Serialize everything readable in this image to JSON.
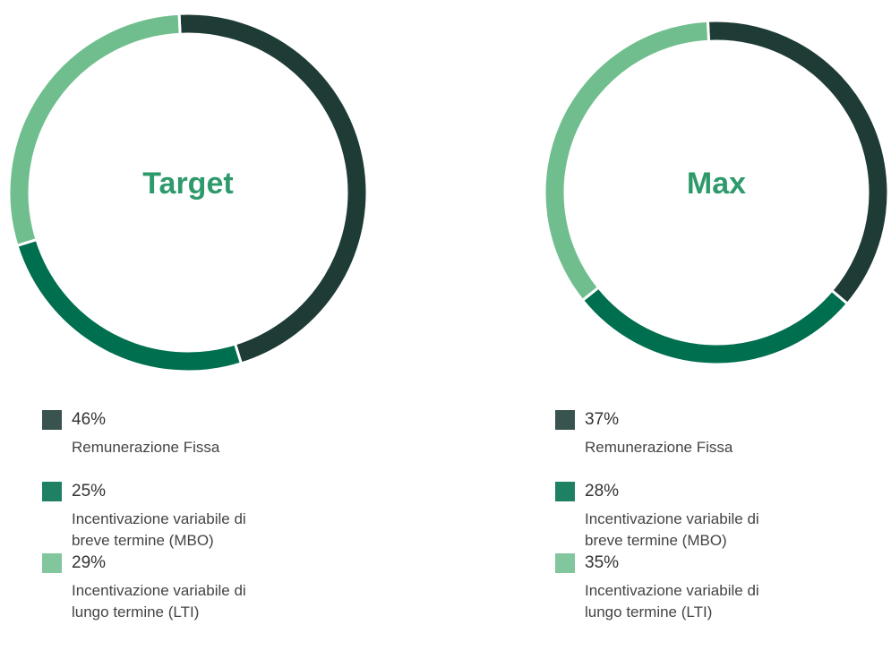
{
  "chart_data": [
    {
      "type": "pie",
      "title": "Target",
      "categories": [
        "Remunerazione Fissa",
        "Incentivazione variabile di breve termine (MBO)",
        "Incentivazione variabile di lungo termine (LTI)"
      ],
      "values": [
        46,
        25,
        29
      ],
      "value_labels": [
        "46%",
        "25%",
        "29%"
      ],
      "colors": [
        "#1e3b36",
        "#006f4f",
        "#70be8e"
      ]
    },
    {
      "type": "pie",
      "title": "Max",
      "categories": [
        "Remunerazione Fissa",
        "Incentivazione variabile di breve termine (MBO)",
        "Incentivazione variabile di lungo termine (LTI)"
      ],
      "values": [
        37,
        28,
        35
      ],
      "value_labels": [
        "37%",
        "28%",
        "35%"
      ],
      "colors": [
        "#1e3b36",
        "#006f4f",
        "#70be8e"
      ]
    }
  ]
}
